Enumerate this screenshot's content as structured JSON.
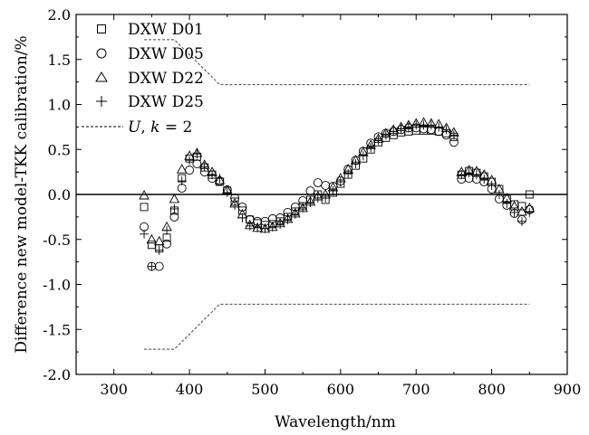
{
  "chart_data": {
    "type": "scatter",
    "xlabel": "Wavelength/nm",
    "ylabel": "Difference new model-TKK calibration/%",
    "xlim": [
      250,
      900
    ],
    "ylim": [
      -2.0,
      2.0
    ],
    "x_ticks": [
      "300",
      "400",
      "500",
      "600",
      "700",
      "800",
      "900"
    ],
    "y_ticks": [
      "2.0",
      "1.5",
      "1.0",
      "0.5",
      "0.0",
      "-0.5",
      "-1.0",
      "-1.5",
      "-2.0"
    ],
    "x_tick_values": [
      300,
      400,
      500,
      600,
      700,
      800,
      900
    ],
    "y_tick_values": [
      2.0,
      1.5,
      1.0,
      0.5,
      0.0,
      -0.5,
      -1.0,
      -1.5,
      -2.0
    ],
    "zero_line": true,
    "legend_position": "top-left",
    "series": [
      {
        "name": "DXW D01",
        "marker": "square",
        "x": [
          340,
          350,
          360,
          370,
          380,
          390,
          400,
          410,
          420,
          430,
          440,
          450,
          460,
          470,
          480,
          490,
          500,
          510,
          520,
          530,
          540,
          550,
          560,
          570,
          580,
          590,
          600,
          610,
          620,
          630,
          640,
          650,
          660,
          670,
          680,
          690,
          700,
          710,
          720,
          730,
          740,
          750,
          760,
          770,
          780,
          790,
          800,
          810,
          820,
          830,
          840,
          850
        ],
        "y": [
          -0.14,
          -0.56,
          -0.6,
          -0.48,
          -0.18,
          0.18,
          0.4,
          0.42,
          0.3,
          0.22,
          0.14,
          0.04,
          -0.08,
          -0.18,
          -0.28,
          -0.32,
          -0.34,
          -0.33,
          -0.3,
          -0.25,
          -0.19,
          -0.13,
          -0.06,
          0.0,
          -0.06,
          0.02,
          0.12,
          0.22,
          0.32,
          0.4,
          0.5,
          0.58,
          0.63,
          0.66,
          0.69,
          0.7,
          0.71,
          0.71,
          0.71,
          0.7,
          0.68,
          0.64,
          0.22,
          0.26,
          0.24,
          0.2,
          0.14,
          0.06,
          -0.05,
          -0.11,
          -0.13,
          0.0
        ]
      },
      {
        "name": "DXW D05",
        "marker": "circle",
        "x": [
          340,
          350,
          360,
          370,
          380,
          390,
          400,
          410,
          420,
          430,
          440,
          450,
          460,
          470,
          480,
          490,
          500,
          510,
          520,
          530,
          540,
          550,
          560,
          570,
          580,
          590,
          600,
          610,
          620,
          630,
          640,
          650,
          660,
          670,
          680,
          690,
          700,
          710,
          720,
          730,
          740,
          750,
          760,
          770,
          780,
          790,
          800,
          810,
          820,
          830,
          840,
          850
        ],
        "y": [
          -0.36,
          -0.8,
          -0.8,
          -0.55,
          -0.25,
          0.07,
          0.27,
          0.34,
          0.25,
          0.18,
          0.15,
          0.05,
          -0.04,
          -0.14,
          -0.28,
          -0.3,
          -0.3,
          -0.27,
          -0.26,
          -0.2,
          -0.14,
          -0.07,
          0.04,
          0.13,
          0.1,
          0.09,
          0.15,
          0.28,
          0.38,
          0.48,
          0.57,
          0.64,
          0.68,
          0.7,
          0.72,
          0.74,
          0.74,
          0.73,
          0.72,
          0.7,
          0.66,
          0.58,
          0.17,
          0.18,
          0.17,
          0.14,
          0.06,
          -0.05,
          -0.12,
          -0.21,
          -0.28,
          -0.17
        ]
      },
      {
        "name": "DXW D22",
        "marker": "triangle",
        "x": [
          340,
          350,
          360,
          370,
          380,
          390,
          400,
          410,
          420,
          430,
          440,
          450,
          460,
          470,
          480,
          490,
          500,
          510,
          520,
          530,
          540,
          550,
          560,
          570,
          580,
          590,
          600,
          610,
          620,
          630,
          640,
          650,
          660,
          670,
          680,
          690,
          700,
          710,
          720,
          730,
          740,
          750,
          760,
          770,
          780,
          790,
          800,
          810,
          820,
          830,
          840,
          850
        ],
        "y": [
          -0.01,
          -0.5,
          -0.52,
          -0.36,
          -0.05,
          0.28,
          0.43,
          0.46,
          0.33,
          0.25,
          0.16,
          0.05,
          -0.1,
          -0.22,
          -0.34,
          -0.37,
          -0.38,
          -0.36,
          -0.32,
          -0.27,
          -0.21,
          -0.15,
          -0.08,
          -0.02,
          0.0,
          0.08,
          0.18,
          0.28,
          0.38,
          0.47,
          0.55,
          0.62,
          0.68,
          0.72,
          0.75,
          0.77,
          0.79,
          0.8,
          0.79,
          0.78,
          0.74,
          0.69,
          0.25,
          0.27,
          0.26,
          0.22,
          0.16,
          0.06,
          -0.04,
          -0.13,
          -0.19,
          -0.15
        ]
      },
      {
        "name": "DXW D25",
        "marker": "plus",
        "x": [
          340,
          350,
          360,
          370,
          380,
          390,
          400,
          410,
          420,
          430,
          440,
          450,
          460,
          470,
          480,
          490,
          500,
          510,
          520,
          530,
          540,
          550,
          560,
          570,
          580,
          590,
          600,
          610,
          620,
          630,
          640,
          650,
          660,
          670,
          680,
          690,
          700,
          710,
          720,
          730,
          740,
          750,
          760,
          770,
          780,
          790,
          800,
          810,
          820,
          830,
          840,
          850
        ],
        "y": [
          -0.44,
          -0.8,
          -0.62,
          -0.4,
          -0.16,
          0.15,
          0.38,
          0.45,
          0.31,
          0.22,
          0.18,
          0.02,
          -0.12,
          -0.26,
          -0.35,
          -0.37,
          -0.38,
          -0.36,
          -0.33,
          -0.28,
          -0.22,
          -0.15,
          -0.09,
          -0.04,
          -0.04,
          0.04,
          0.14,
          0.23,
          0.34,
          0.43,
          0.52,
          0.6,
          0.66,
          0.7,
          0.73,
          0.75,
          0.77,
          0.77,
          0.77,
          0.75,
          0.72,
          0.66,
          0.22,
          0.24,
          0.22,
          0.17,
          0.1,
          0.0,
          -0.1,
          -0.2,
          -0.3,
          -0.2
        ]
      },
      {
        "name": "U, k = 2",
        "marker": "dashed-line",
        "upper": {
          "x": [
            340,
            380,
            440,
            850
          ],
          "y": [
            1.72,
            1.72,
            1.22,
            1.22
          ]
        },
        "lower": {
          "x": [
            340,
            380,
            440,
            850
          ],
          "y": [
            -1.72,
            -1.72,
            -1.22,
            -1.22
          ]
        }
      }
    ]
  }
}
